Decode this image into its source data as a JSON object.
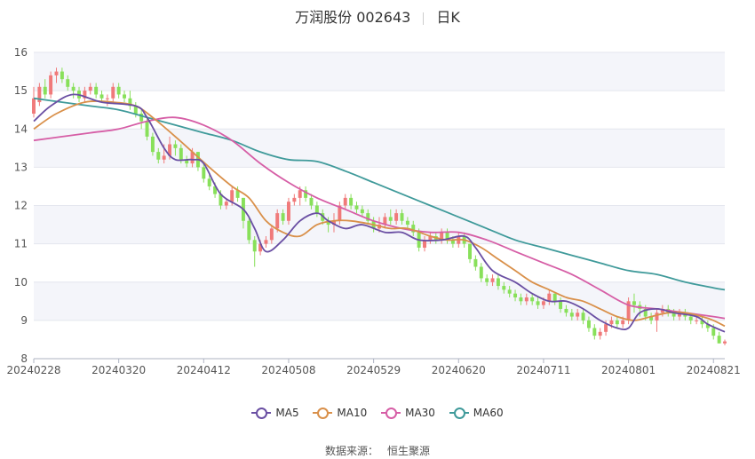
{
  "header": {
    "title": "万润股份 002643",
    "period": "日K"
  },
  "legend": [
    {
      "label": "MA5",
      "color": "#6a4fa3"
    },
    {
      "label": "MA10",
      "color": "#d9904a"
    },
    {
      "label": "MA30",
      "color": "#d65ea6"
    },
    {
      "label": "MA60",
      "color": "#3f9a9a"
    }
  ],
  "footer": {
    "source_label": "数据来源：",
    "source_value": "恒生聚源"
  },
  "colors": {
    "up": "#f07a7a",
    "down": "#88e05a",
    "grid": "#e4e6ee",
    "band": "#f4f5fa"
  },
  "chart_data": {
    "type": "candlestick",
    "title": "万润股份 002643 日K",
    "ylim": [
      8,
      16
    ],
    "yticks": [
      8,
      9,
      10,
      11,
      12,
      13,
      14,
      15,
      16
    ],
    "xticks": [
      "20240228",
      "20240320",
      "20240412",
      "20240508",
      "20240529",
      "20240620",
      "20240711",
      "20240801",
      "20240821"
    ],
    "xtick_index": [
      0,
      15,
      30,
      45,
      60,
      75,
      90,
      105,
      120
    ],
    "ohlc": [
      [
        14.4,
        14.8,
        15.1,
        14.3
      ],
      [
        14.7,
        15.1,
        15.2,
        14.6
      ],
      [
        15.1,
        14.9,
        15.3,
        14.8
      ],
      [
        14.9,
        15.4,
        15.5,
        14.8
      ],
      [
        15.4,
        15.5,
        15.6,
        15.2
      ],
      [
        15.5,
        15.3,
        15.6,
        15.2
      ],
      [
        15.3,
        15.1,
        15.4,
        15.0
      ],
      [
        15.1,
        15.0,
        15.2,
        14.8
      ],
      [
        15.0,
        14.8,
        15.1,
        14.7
      ],
      [
        14.8,
        15.0,
        15.1,
        14.7
      ],
      [
        15.0,
        15.1,
        15.2,
        14.9
      ],
      [
        15.1,
        14.9,
        15.2,
        14.8
      ],
      [
        14.9,
        14.8,
        15.0,
        14.7
      ],
      [
        14.8,
        14.8,
        14.9,
        14.6
      ],
      [
        14.8,
        15.1,
        15.2,
        14.7
      ],
      [
        15.1,
        14.9,
        15.2,
        14.8
      ],
      [
        14.9,
        14.8,
        15.0,
        14.7
      ],
      [
        14.8,
        14.6,
        15.0,
        14.5
      ],
      [
        14.6,
        14.4,
        14.7,
        14.3
      ],
      [
        14.4,
        14.2,
        14.5,
        14.0
      ],
      [
        14.2,
        13.8,
        14.3,
        13.7
      ],
      [
        13.8,
        13.4,
        13.9,
        13.3
      ],
      [
        13.4,
        13.2,
        13.5,
        13.1
      ],
      [
        13.2,
        13.3,
        13.6,
        13.1
      ],
      [
        13.3,
        13.6,
        13.8,
        13.2
      ],
      [
        13.6,
        13.5,
        13.7,
        13.3
      ],
      [
        13.5,
        13.2,
        13.6,
        13.1
      ],
      [
        13.2,
        13.1,
        13.3,
        13.0
      ],
      [
        13.1,
        13.4,
        13.5,
        13.0
      ],
      [
        13.4,
        13.0,
        13.4,
        12.9
      ],
      [
        13.0,
        12.7,
        13.1,
        12.6
      ],
      [
        12.7,
        12.5,
        12.8,
        12.4
      ],
      [
        12.5,
        12.3,
        12.6,
        12.2
      ],
      [
        12.3,
        12.0,
        12.4,
        11.9
      ],
      [
        12.0,
        12.1,
        12.2,
        11.9
      ],
      [
        12.1,
        12.4,
        12.5,
        12.0
      ],
      [
        12.4,
        12.2,
        12.5,
        12.1
      ],
      [
        12.2,
        11.6,
        12.2,
        11.4
      ],
      [
        11.6,
        11.1,
        11.7,
        11.0
      ],
      [
        11.1,
        10.8,
        11.2,
        10.4
      ],
      [
        10.8,
        11.0,
        11.1,
        10.7
      ],
      [
        11.0,
        11.1,
        11.2,
        10.9
      ],
      [
        11.1,
        11.4,
        11.5,
        11.0
      ],
      [
        11.4,
        11.8,
        11.9,
        11.3
      ],
      [
        11.8,
        11.6,
        11.9,
        11.5
      ],
      [
        11.6,
        12.1,
        12.2,
        11.5
      ],
      [
        12.1,
        12.2,
        12.3,
        12.0
      ],
      [
        12.2,
        12.4,
        12.5,
        12.0
      ],
      [
        12.4,
        12.2,
        12.5,
        12.1
      ],
      [
        12.2,
        12.0,
        12.3,
        11.9
      ],
      [
        12.0,
        11.8,
        12.1,
        11.7
      ],
      [
        11.8,
        11.6,
        11.9,
        11.5
      ],
      [
        11.6,
        11.5,
        11.7,
        11.3
      ],
      [
        11.5,
        11.6,
        11.8,
        11.3
      ],
      [
        11.6,
        12.0,
        12.1,
        11.5
      ],
      [
        12.0,
        12.2,
        12.3,
        11.9
      ],
      [
        12.2,
        12.0,
        12.3,
        11.9
      ],
      [
        12.0,
        11.9,
        12.1,
        11.8
      ],
      [
        11.9,
        11.8,
        12.0,
        11.7
      ],
      [
        11.8,
        11.6,
        11.9,
        11.5
      ],
      [
        11.6,
        11.4,
        11.7,
        11.3
      ],
      [
        11.4,
        11.5,
        11.7,
        11.3
      ],
      [
        11.5,
        11.7,
        11.8,
        11.4
      ],
      [
        11.7,
        11.6,
        11.9,
        11.5
      ],
      [
        11.6,
        11.8,
        11.9,
        11.5
      ],
      [
        11.8,
        11.6,
        11.9,
        11.5
      ],
      [
        11.6,
        11.5,
        11.7,
        11.4
      ],
      [
        11.5,
        11.3,
        11.6,
        11.2
      ],
      [
        11.3,
        10.9,
        11.4,
        10.8
      ],
      [
        10.9,
        11.1,
        11.2,
        10.8
      ],
      [
        11.1,
        11.2,
        11.3,
        11.0
      ],
      [
        11.2,
        11.1,
        11.3,
        11.0
      ],
      [
        11.1,
        11.3,
        11.4,
        11.0
      ],
      [
        11.3,
        11.1,
        11.4,
        11.0
      ],
      [
        11.1,
        11.0,
        11.2,
        10.9
      ],
      [
        11.0,
        11.2,
        11.3,
        10.9
      ],
      [
        11.2,
        11.0,
        11.3,
        10.9
      ],
      [
        11.0,
        10.6,
        11.0,
        10.5
      ],
      [
        10.6,
        10.4,
        10.7,
        10.3
      ],
      [
        10.4,
        10.1,
        10.5,
        10.0
      ],
      [
        10.1,
        10.0,
        10.2,
        9.9
      ],
      [
        10.0,
        10.1,
        10.2,
        9.9
      ],
      [
        10.1,
        9.9,
        10.2,
        9.8
      ],
      [
        9.9,
        9.8,
        10.0,
        9.7
      ],
      [
        9.8,
        9.7,
        9.9,
        9.6
      ],
      [
        9.7,
        9.6,
        9.8,
        9.5
      ],
      [
        9.6,
        9.5,
        9.7,
        9.4
      ],
      [
        9.5,
        9.6,
        9.7,
        9.4
      ],
      [
        9.6,
        9.5,
        9.7,
        9.4
      ],
      [
        9.5,
        9.4,
        9.6,
        9.3
      ],
      [
        9.4,
        9.5,
        9.6,
        9.3
      ],
      [
        9.5,
        9.7,
        9.8,
        9.4
      ],
      [
        9.7,
        9.5,
        9.7,
        9.4
      ],
      [
        9.5,
        9.3,
        9.6,
        9.2
      ],
      [
        9.3,
        9.2,
        9.4,
        9.1
      ],
      [
        9.2,
        9.1,
        9.3,
        9.0
      ],
      [
        9.1,
        9.2,
        9.3,
        9.0
      ],
      [
        9.2,
        9.0,
        9.3,
        8.9
      ],
      [
        9.0,
        8.8,
        9.1,
        8.7
      ],
      [
        8.8,
        8.6,
        8.9,
        8.5
      ],
      [
        8.6,
        8.7,
        8.8,
        8.5
      ],
      [
        8.7,
        8.9,
        9.0,
        8.6
      ],
      [
        8.9,
        9.0,
        9.1,
        8.8
      ],
      [
        9.0,
        8.9,
        9.1,
        8.8
      ],
      [
        8.9,
        9.0,
        9.1,
        8.8
      ],
      [
        9.0,
        9.5,
        9.6,
        8.9
      ],
      [
        9.5,
        9.4,
        9.7,
        9.2
      ],
      [
        9.4,
        9.3,
        9.5,
        9.1
      ],
      [
        9.3,
        9.1,
        9.4,
        9.0
      ],
      [
        9.1,
        9.0,
        9.2,
        8.9
      ],
      [
        9.0,
        9.2,
        9.3,
        8.7
      ],
      [
        9.2,
        9.3,
        9.4,
        9.1
      ],
      [
        9.3,
        9.2,
        9.4,
        9.1
      ],
      [
        9.2,
        9.1,
        9.3,
        9.0
      ],
      [
        9.1,
        9.2,
        9.3,
        9.0
      ],
      [
        9.2,
        9.1,
        9.3,
        9.0
      ],
      [
        9.1,
        9.0,
        9.2,
        8.9
      ],
      [
        9.0,
        9.0,
        9.1,
        8.9
      ],
      [
        9.0,
        8.9,
        9.1,
        8.8
      ],
      [
        8.9,
        8.8,
        9.0,
        8.7
      ],
      [
        8.8,
        8.6,
        8.9,
        8.5
      ],
      [
        8.6,
        8.4,
        8.7,
        8.4
      ],
      [
        8.4,
        8.45,
        8.5,
        8.35
      ]
    ],
    "ma": {
      "MA5": [
        [
          0,
          14.2
        ],
        [
          3,
          14.6
        ],
        [
          7,
          14.9
        ],
        [
          12,
          14.7
        ],
        [
          18,
          14.6
        ],
        [
          20,
          14.3
        ],
        [
          23,
          13.5
        ],
        [
          25,
          13.2
        ],
        [
          28,
          13.2
        ],
        [
          30,
          13.1
        ],
        [
          33,
          12.3
        ],
        [
          37,
          11.9
        ],
        [
          39,
          11.4
        ],
        [
          41,
          10.8
        ],
        [
          44,
          11.1
        ],
        [
          47,
          11.6
        ],
        [
          50,
          11.8
        ],
        [
          52,
          11.6
        ],
        [
          55,
          11.4
        ],
        [
          58,
          11.5
        ],
        [
          62,
          11.3
        ],
        [
          65,
          11.3
        ],
        [
          68,
          11.1
        ],
        [
          72,
          11.1
        ],
        [
          76,
          11.2
        ],
        [
          78,
          10.9
        ],
        [
          81,
          10.3
        ],
        [
          85,
          10.0
        ],
        [
          88,
          9.7
        ],
        [
          91,
          9.5
        ],
        [
          94,
          9.5
        ],
        [
          97,
          9.3
        ],
        [
          100,
          9.0
        ],
        [
          103,
          8.8
        ],
        [
          105,
          8.8
        ],
        [
          107,
          9.2
        ],
        [
          110,
          9.3
        ],
        [
          113,
          9.2
        ],
        [
          117,
          9.1
        ],
        [
          119,
          8.9
        ],
        [
          122,
          8.7
        ]
      ],
      "MA10": [
        [
          0,
          14.0
        ],
        [
          4,
          14.4
        ],
        [
          9,
          14.7
        ],
        [
          14,
          14.7
        ],
        [
          18,
          14.6
        ],
        [
          21,
          14.3
        ],
        [
          25,
          13.8
        ],
        [
          28,
          13.4
        ],
        [
          31,
          13.0
        ],
        [
          35,
          12.5
        ],
        [
          38,
          12.2
        ],
        [
          41,
          11.6
        ],
        [
          44,
          11.3
        ],
        [
          47,
          11.2
        ],
        [
          50,
          11.5
        ],
        [
          53,
          11.6
        ],
        [
          56,
          11.6
        ],
        [
          60,
          11.5
        ],
        [
          63,
          11.4
        ],
        [
          66,
          11.4
        ],
        [
          70,
          11.2
        ],
        [
          73,
          11.1
        ],
        [
          76,
          11.1
        ],
        [
          79,
          10.9
        ],
        [
          82,
          10.6
        ],
        [
          85,
          10.3
        ],
        [
          88,
          10.0
        ],
        [
          91,
          9.8
        ],
        [
          94,
          9.6
        ],
        [
          97,
          9.5
        ],
        [
          100,
          9.3
        ],
        [
          103,
          9.1
        ],
        [
          106,
          9.0
        ],
        [
          109,
          9.1
        ],
        [
          112,
          9.2
        ],
        [
          115,
          9.2
        ],
        [
          118,
          9.1
        ],
        [
          120,
          9.0
        ],
        [
          122,
          8.85
        ]
      ],
      "MA30": [
        [
          0,
          13.7
        ],
        [
          5,
          13.8
        ],
        [
          10,
          13.9
        ],
        [
          15,
          14.0
        ],
        [
          20,
          14.2
        ],
        [
          25,
          14.3
        ],
        [
          30,
          14.1
        ],
        [
          35,
          13.7
        ],
        [
          40,
          13.1
        ],
        [
          45,
          12.6
        ],
        [
          50,
          12.2
        ],
        [
          55,
          11.9
        ],
        [
          60,
          11.6
        ],
        [
          65,
          11.4
        ],
        [
          70,
          11.3
        ],
        [
          75,
          11.3
        ],
        [
          80,
          11.1
        ],
        [
          85,
          10.8
        ],
        [
          90,
          10.5
        ],
        [
          95,
          10.2
        ],
        [
          100,
          9.8
        ],
        [
          105,
          9.4
        ],
        [
          110,
          9.3
        ],
        [
          115,
          9.2
        ],
        [
          120,
          9.1
        ],
        [
          122,
          9.05
        ]
      ],
      "MA60": [
        [
          0,
          14.8
        ],
        [
          5,
          14.7
        ],
        [
          10,
          14.6
        ],
        [
          15,
          14.5
        ],
        [
          20,
          14.3
        ],
        [
          25,
          14.1
        ],
        [
          30,
          13.9
        ],
        [
          35,
          13.7
        ],
        [
          40,
          13.4
        ],
        [
          45,
          13.2
        ],
        [
          50,
          13.15
        ],
        [
          55,
          12.9
        ],
        [
          60,
          12.6
        ],
        [
          65,
          12.3
        ],
        [
          70,
          12.0
        ],
        [
          75,
          11.7
        ],
        [
          80,
          11.4
        ],
        [
          85,
          11.1
        ],
        [
          90,
          10.9
        ],
        [
          95,
          10.7
        ],
        [
          100,
          10.5
        ],
        [
          105,
          10.3
        ],
        [
          110,
          10.2
        ],
        [
          115,
          10.0
        ],
        [
          120,
          9.85
        ],
        [
          122,
          9.8
        ]
      ]
    }
  }
}
